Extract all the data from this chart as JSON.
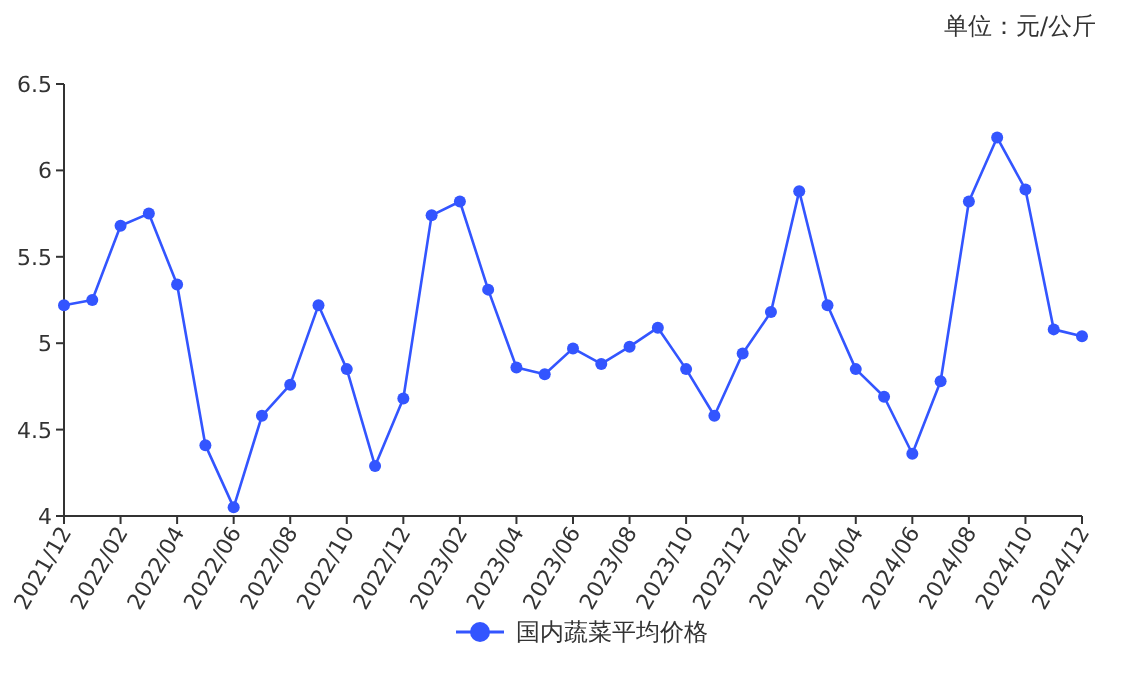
{
  "chart_data": {
    "type": "line",
    "annotations": [
      "单位：元/公斤"
    ],
    "categories": [
      "2021/12",
      null,
      "2022/02",
      null,
      "2022/04",
      null,
      "2022/06",
      null,
      "2022/08",
      null,
      "2022/10",
      null,
      "2022/12",
      null,
      "2023/02",
      null,
      "2023/04",
      null,
      "2023/06",
      null,
      "2023/08",
      null,
      "2023/10",
      null,
      "2023/12",
      null,
      "2024/02",
      null,
      "2024/04",
      null,
      "2024/06",
      null,
      "2024/08",
      null,
      "2024/10",
      null,
      "2024/12"
    ],
    "series": [
      {
        "name": "国内蔬菜平均价格",
        "color": "#3355ff",
        "values": [
          5.22,
          5.25,
          5.68,
          5.75,
          5.34,
          4.41,
          4.05,
          4.58,
          4.76,
          5.22,
          4.85,
          4.29,
          4.68,
          5.74,
          5.82,
          5.31,
          4.86,
          4.82,
          4.97,
          4.88,
          4.98,
          5.09,
          4.85,
          4.58,
          4.94,
          5.18,
          5.88,
          5.22,
          4.85,
          4.69,
          4.36,
          4.78,
          5.82,
          6.19,
          5.89,
          5.08,
          5.04
        ]
      }
    ],
    "ylim": [
      4,
      6.5
    ],
    "yticks": [
      4,
      4.5,
      5,
      5.5,
      6,
      6.5
    ],
    "marker": "circle",
    "legend": "bottom",
    "grid": false
  }
}
